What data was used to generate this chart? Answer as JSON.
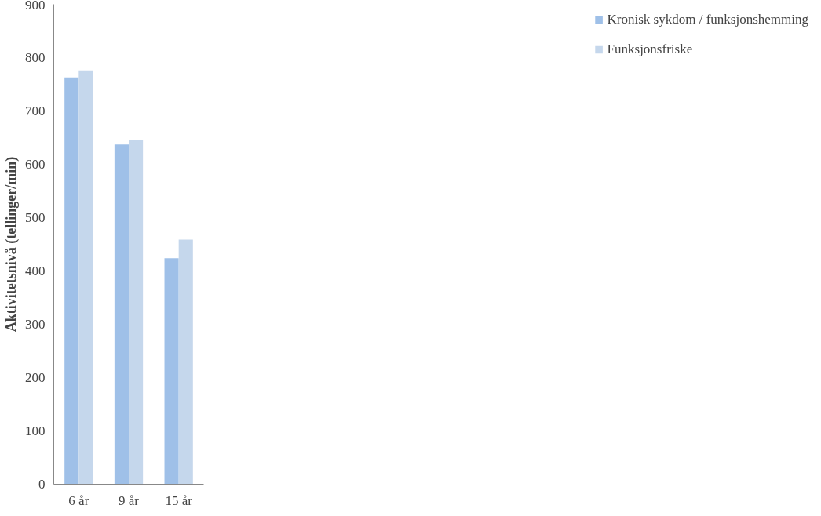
{
  "chart_data": {
    "type": "bar",
    "ylabel": "Aktivitetsnivå (tellinger/min)",
    "categories": [
      "6 år",
      "9 år",
      "15 år"
    ],
    "series": [
      {
        "name": "Kronisk sykdom / funksjonshemming",
        "color": "#9fc0e8",
        "values": [
          763,
          637,
          424
        ]
      },
      {
        "name": "Funksjonsfriske",
        "color": "#c5d7ec",
        "values": [
          776,
          645,
          459
        ]
      }
    ],
    "ylim": [
      0,
      900
    ],
    "yticks": [
      0,
      100,
      200,
      300,
      400,
      500,
      600,
      700,
      800,
      900
    ],
    "grid": false,
    "legend": "right"
  }
}
